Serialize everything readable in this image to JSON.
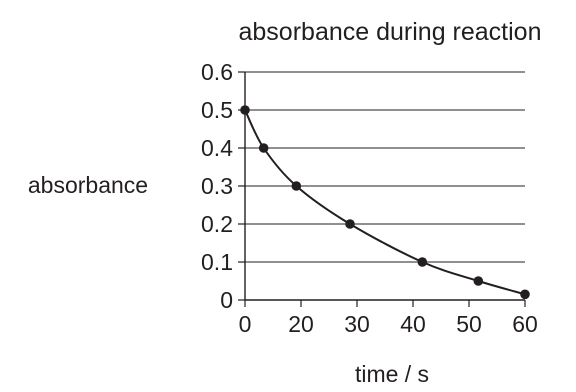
{
  "chart_data": {
    "type": "line",
    "title": "absorbance during reaction",
    "xlabel": "time / s",
    "ylabel": "absorbance",
    "x_ticks": [
      "0",
      "20",
      "30",
      "40",
      "50",
      "60"
    ],
    "y_ticks": [
      "0",
      "0.1",
      "0.2",
      "0.3",
      "0.4",
      "0.5",
      "0.6"
    ],
    "xlim": [
      0,
      60
    ],
    "ylim": [
      0,
      0.6
    ],
    "grid": "horizontal",
    "series": [
      {
        "points": [
          {
            "x": 0,
            "y": 0.5
          },
          {
            "x": 4,
            "y": 0.4
          },
          {
            "x": 11,
            "y": 0.3
          },
          {
            "x": 22.5,
            "y": 0.2
          },
          {
            "x": 38,
            "y": 0.1
          },
          {
            "x": 50,
            "y": 0.05
          },
          {
            "x": 60,
            "y": 0.015
          }
        ]
      }
    ]
  }
}
